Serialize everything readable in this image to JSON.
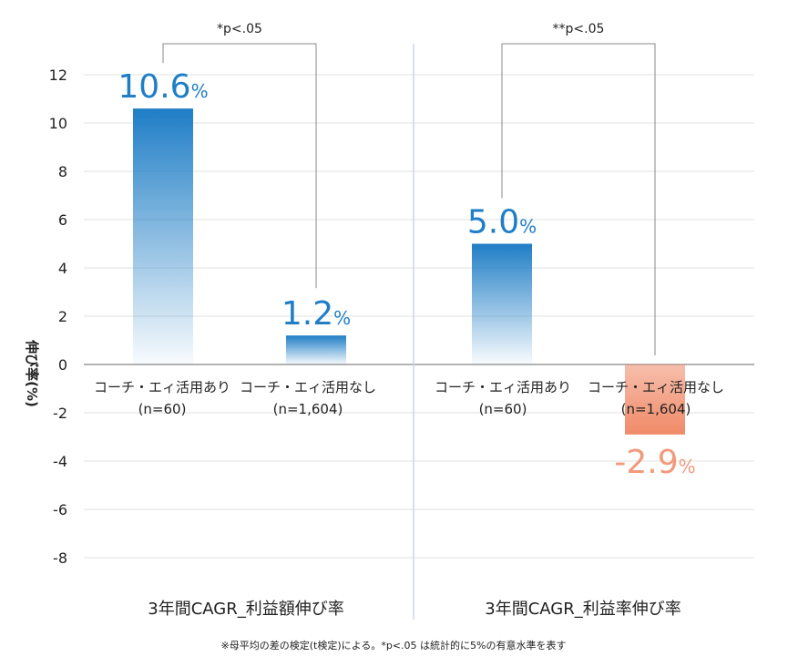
{
  "chart_data": {
    "type": "bar",
    "ylabel": "伸び率(%)",
    "ylim": [
      -8,
      12
    ],
    "yticks": [
      12,
      10,
      8,
      6,
      4,
      2,
      0,
      -2,
      -4,
      -6,
      -8
    ],
    "grid": true,
    "colors": {
      "positive": "#1f7ec6",
      "negative": "#f19a7c",
      "divider": "#c9d6ea",
      "bracket": "#888888"
    },
    "groups": [
      {
        "title": "3年間CAGR_利益額伸び率",
        "significance": "*p<.05",
        "bars": [
          {
            "label": "コーチ・エィ活用あり",
            "n_label": "(n=60)",
            "value": 10.6,
            "value_label": "10.6"
          },
          {
            "label": "コーチ・エィ活用なし",
            "n_label": "(n=1,604)",
            "value": 1.2,
            "value_label": "1.2"
          }
        ]
      },
      {
        "title": "3年間CAGR_利益率伸び率",
        "significance": "**p<.05",
        "bars": [
          {
            "label": "コーチ・エィ活用あり",
            "n_label": "(n=60)",
            "value": 5.0,
            "value_label": "5.0"
          },
          {
            "label": "コーチ・エィ活用なし",
            "n_label": "(n=1,604)",
            "value": -2.9,
            "value_label": "-2.9"
          }
        ]
      }
    ],
    "percent_sign": "%",
    "footnote": "※母平均の差の検定(t検定)による。*p<.05 は統計的に5%の有意水準を表す"
  }
}
